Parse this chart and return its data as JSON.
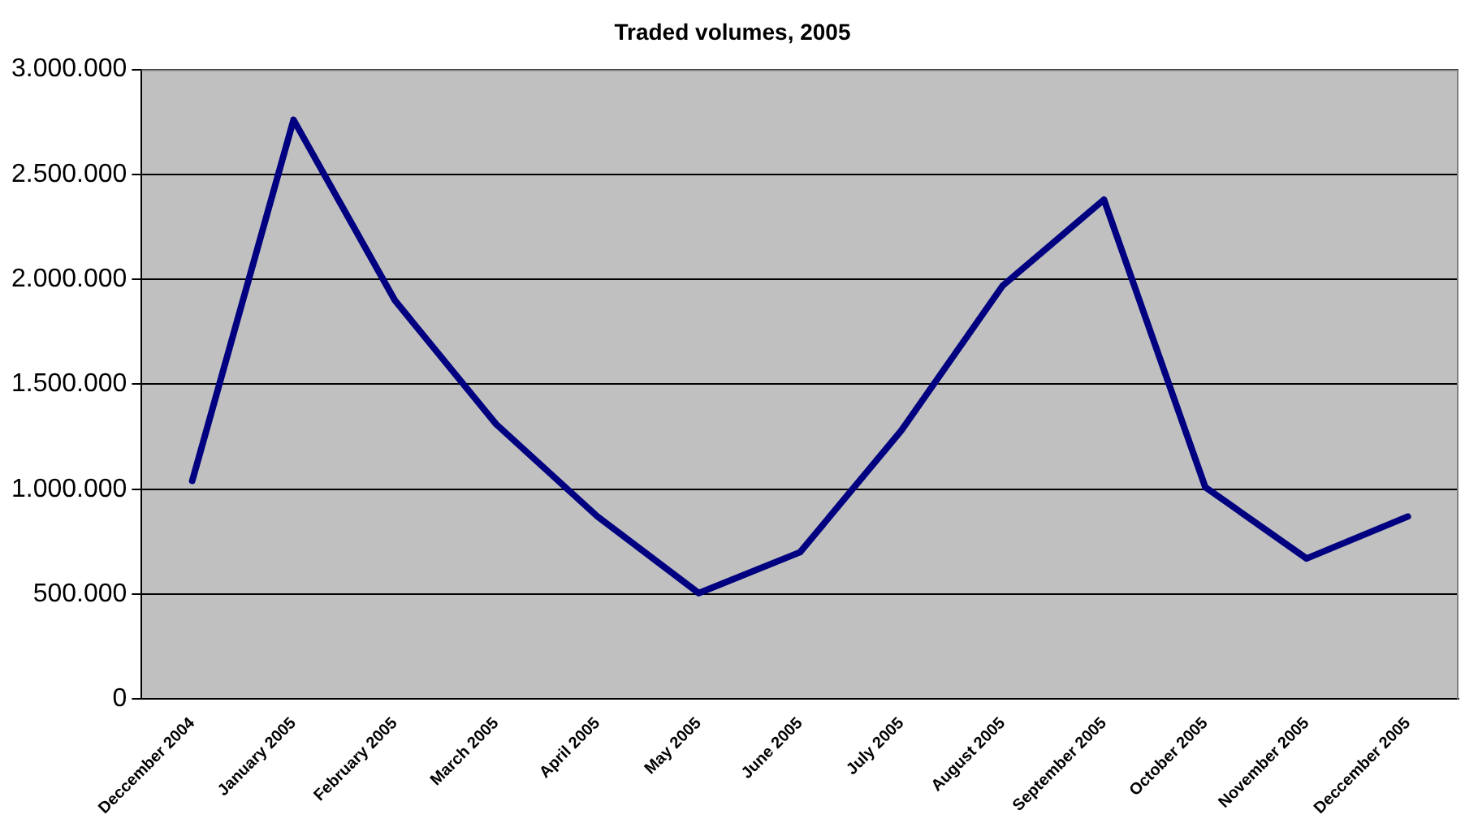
{
  "chart_data": {
    "type": "line",
    "title": "Traded volumes, 2005",
    "categories": [
      "Deccember 2004",
      "January 2005",
      "February 2005",
      "March 2005",
      "April 2005",
      "May 2005",
      "June 2005",
      "July 2005",
      "August 2005",
      "September 2005",
      "October 2005",
      "November 2005",
      "Deccember 2005"
    ],
    "series": [
      {
        "color": "#000080",
        "values": [
          1040000,
          2760000,
          1900000,
          1310000,
          870000,
          505000,
          700000,
          1280000,
          1970000,
          2380000,
          1010000,
          670000,
          870000
        ]
      }
    ],
    "ylim": [
      0,
      3000000
    ],
    "yticks": [
      {
        "value": 0,
        "label": "0"
      },
      {
        "value": 500000,
        "label": "500.000"
      },
      {
        "value": 1000000,
        "label": "1.000.000"
      },
      {
        "value": 1500000,
        "label": "1.500.000"
      },
      {
        "value": 2000000,
        "label": "2.000.000"
      },
      {
        "value": 2500000,
        "label": "2.500.000"
      },
      {
        "value": 3000000,
        "label": "3.000.000"
      }
    ],
    "grid": "y",
    "legend": false,
    "marker": "none",
    "line_style": "solid"
  }
}
